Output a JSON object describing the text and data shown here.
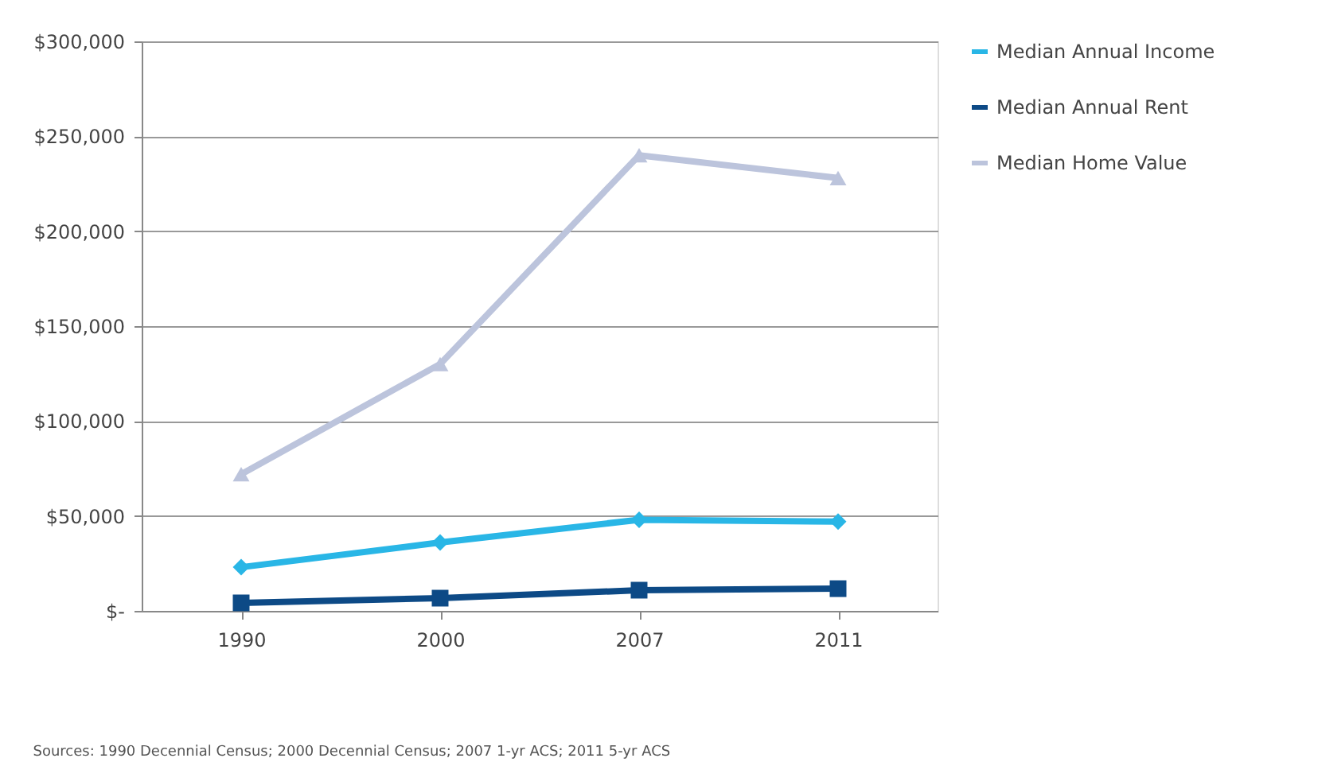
{
  "chart_data": {
    "type": "line",
    "categories": [
      "1990",
      "2000",
      "2007",
      "2011"
    ],
    "series": [
      {
        "name": "Median Annual Income",
        "color": "#29b6e6",
        "marker": "diamond",
        "values": [
          23000,
          36000,
          48000,
          47000
        ]
      },
      {
        "name": "Median Annual Rent",
        "color": "#0d4a86",
        "marker": "square",
        "values": [
          4200,
          6700,
          10900,
          11700
        ]
      },
      {
        "name": "Median Home Value",
        "color": "#bcc4dc",
        "marker": "triangle",
        "values": [
          72000,
          130000,
          240000,
          228000
        ]
      }
    ],
    "ylim": [
      0,
      300000
    ],
    "yticks": [
      {
        "value": 0,
        "label": "$-"
      },
      {
        "value": 50000,
        "label": "$50,000"
      },
      {
        "value": 100000,
        "label": "$100,000"
      },
      {
        "value": 150000,
        "label": "$150,000"
      },
      {
        "value": 200000,
        "label": "$200,000"
      },
      {
        "value": 250000,
        "label": "$250,000"
      },
      {
        "value": 300000,
        "label": "$300,000"
      }
    ],
    "grid": "y",
    "legend": "right",
    "line_style": "solid",
    "annotations": [
      "Sources: 1990 Decennial Census; 2000 Decennial Census; 2007 1-yr ACS; 2011 5-yr ACS"
    ]
  }
}
